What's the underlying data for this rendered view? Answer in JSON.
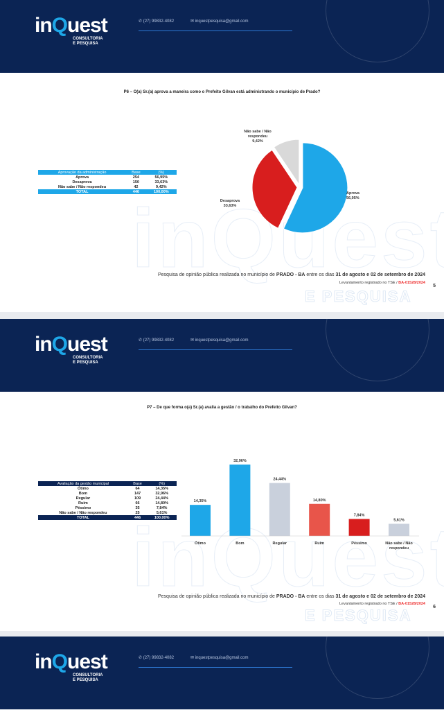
{
  "brand": {
    "logo_text": "inQuest",
    "subtitle_line1": "CONSULTORIA",
    "subtitle_line2": "E PESQUISA",
    "phone": "(27) 99832-4082",
    "email": "inquestpesquisa@gmail.com"
  },
  "footer": {
    "text_prefix": "Pesquisa de opinião pública realizada no município de ",
    "city": "PRADO - BA",
    "text_mid": " entre os dias ",
    "dates": "31 de agosto e 02 de setembro de 2024",
    "tse_label": "Levantamento registrado no TSE / ",
    "tse_code": "BA-01528/2024"
  },
  "slides": [
    {
      "page": "5",
      "question": "P6 – O(a) Sr.(a) aprova a maneira como o Prefeito Gilvan está administrando o município de Prado?",
      "table": {
        "headers": [
          "Aprovação da administração",
          "Base",
          "(%)"
        ],
        "rows": [
          [
            "Aprova",
            "254",
            "56,95%"
          ],
          [
            "Desaprova",
            "150",
            "33,63%"
          ],
          [
            "Não sabe / Não respondeu",
            "42",
            "9,42%"
          ]
        ],
        "total": [
          "TOTAL",
          "446",
          "100,00%"
        ]
      }
    },
    {
      "page": "6",
      "question": "P7 – De que forma o(a) Sr.(a) avalia a gestão / o trabalho do Prefeito Gilvan?",
      "table": {
        "headers": [
          "Avaliação da gestão municipal",
          "Base",
          "(%)"
        ],
        "rows": [
          [
            "Ótimo",
            "64",
            "14,35%"
          ],
          [
            "Bom",
            "147",
            "32,96%"
          ],
          [
            "Regular",
            "109",
            "24,44%"
          ],
          [
            "Ruim",
            "66",
            "14,80%"
          ],
          [
            "Péssimo",
            "35",
            "7,84%"
          ],
          [
            "Não sabe / Não respondeu",
            "25",
            "5,61%"
          ]
        ],
        "total": [
          "TOTAL",
          "446",
          "100,00%"
        ]
      }
    }
  ],
  "chart_data": [
    {
      "type": "pie",
      "categories": [
        "Aprova",
        "Desaprova",
        "Não sabe / Não respondeu"
      ],
      "values": [
        56.95,
        33.63,
        9.42
      ],
      "labels": [
        "56,95%",
        "33,63%",
        "9,42%"
      ],
      "label_lines": [
        [
          "Aprova"
        ],
        [
          "Desaprova"
        ],
        [
          "Não sabe / Não",
          "respondeu"
        ]
      ],
      "colors": [
        "#1ea7e8",
        "#d81e1e",
        "#d9d9d9"
      ]
    },
    {
      "type": "bar",
      "categories": [
        "Ótimo",
        "Bom",
        "Regular",
        "Ruim",
        "Péssimo",
        "Não sabe / Não respondeu"
      ],
      "category_lines": [
        [
          "Ótimo"
        ],
        [
          "Bom"
        ],
        [
          "Regular"
        ],
        [
          "Ruim"
        ],
        [
          "Péssimo"
        ],
        [
          "Não sabe / Não",
          "respondeu"
        ]
      ],
      "values": [
        14.35,
        32.96,
        24.44,
        14.8,
        7.84,
        5.61
      ],
      "labels": [
        "14,35%",
        "32,96%",
        "24,44%",
        "14,80%",
        "7,84%",
        "5,61%"
      ],
      "colors": [
        "#1ea7e8",
        "#1ea7e8",
        "#c9d0dc",
        "#e8554a",
        "#d81e1e",
        "#c9d0dc"
      ]
    }
  ]
}
